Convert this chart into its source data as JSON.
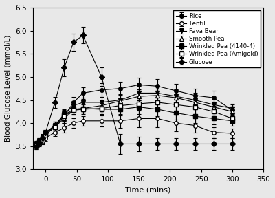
{
  "time_points": [
    -15,
    -10,
    -5,
    0,
    15,
    30,
    45,
    60,
    90,
    120,
    150,
    180,
    210,
    240,
    270,
    300
  ],
  "rice": {
    "y": [
      3.55,
      3.62,
      3.7,
      3.8,
      3.95,
      4.15,
      4.45,
      4.65,
      4.72,
      4.75,
      4.83,
      4.8,
      4.7,
      4.6,
      4.55,
      4.28
    ],
    "yerr": [
      0.06,
      0.06,
      0.06,
      0.06,
      0.08,
      0.1,
      0.12,
      0.13,
      0.15,
      0.15,
      0.15,
      0.15,
      0.15,
      0.15,
      0.15,
      0.12
    ],
    "marker": "o",
    "fillstyle": "full",
    "label": "Rice"
  },
  "lentil": {
    "y": [
      3.5,
      3.55,
      3.6,
      3.68,
      3.8,
      3.9,
      4.0,
      4.05,
      4.05,
      4.05,
      4.1,
      4.1,
      4.0,
      3.95,
      3.8,
      3.78
    ],
    "yerr": [
      0.06,
      0.06,
      0.06,
      0.06,
      0.08,
      0.1,
      0.1,
      0.1,
      0.12,
      0.15,
      0.18,
      0.18,
      0.18,
      0.15,
      0.12,
      0.1
    ],
    "marker": "o",
    "fillstyle": "none",
    "label": "Lentil"
  },
  "fava_bean": {
    "y": [
      3.55,
      3.62,
      3.68,
      3.78,
      3.95,
      4.2,
      4.38,
      4.45,
      4.45,
      4.5,
      4.65,
      4.65,
      4.58,
      4.5,
      4.4,
      4.32
    ],
    "yerr": [
      0.06,
      0.06,
      0.06,
      0.06,
      0.08,
      0.1,
      0.1,
      0.1,
      0.12,
      0.13,
      0.15,
      0.15,
      0.15,
      0.15,
      0.12,
      0.1
    ],
    "marker": "v",
    "fillstyle": "full",
    "label": "Fava Bean"
  },
  "smooth_pea": {
    "y": [
      3.52,
      3.58,
      3.65,
      3.75,
      3.92,
      4.1,
      4.28,
      4.32,
      4.38,
      4.48,
      4.58,
      4.6,
      4.55,
      4.45,
      4.35,
      4.25
    ],
    "yerr": [
      0.06,
      0.06,
      0.06,
      0.06,
      0.08,
      0.1,
      0.1,
      0.1,
      0.12,
      0.13,
      0.15,
      0.15,
      0.15,
      0.15,
      0.12,
      0.1
    ],
    "marker": "^",
    "fillstyle": "none",
    "label": "Smooth Pea"
  },
  "wrinkled_4140": {
    "y": [
      3.53,
      3.6,
      3.67,
      3.77,
      3.95,
      4.18,
      4.3,
      4.32,
      4.3,
      4.3,
      4.35,
      4.3,
      4.22,
      4.15,
      4.1,
      4.05
    ],
    "yerr": [
      0.06,
      0.06,
      0.06,
      0.06,
      0.08,
      0.1,
      0.1,
      0.1,
      0.12,
      0.13,
      0.15,
      0.15,
      0.15,
      0.15,
      0.12,
      0.1
    ],
    "marker": "s",
    "fillstyle": "full",
    "label": "Wrinkled Pea (4140-4)"
  },
  "wrinkled_amigold": {
    "y": [
      3.52,
      3.58,
      3.65,
      3.75,
      3.92,
      4.15,
      4.28,
      4.3,
      4.32,
      4.38,
      4.42,
      4.45,
      4.4,
      4.35,
      4.25,
      4.1
    ],
    "yerr": [
      0.06,
      0.06,
      0.06,
      0.06,
      0.08,
      0.1,
      0.1,
      0.1,
      0.12,
      0.13,
      0.15,
      0.15,
      0.15,
      0.15,
      0.12,
      0.1
    ],
    "marker": "s",
    "fillstyle": "none",
    "label": "Wrinkled Pea (Amigold)"
  },
  "glucose": {
    "y": [
      3.5,
      3.58,
      3.68,
      3.8,
      4.45,
      5.2,
      5.75,
      5.9,
      5.0,
      3.55,
      3.55,
      3.55,
      3.55,
      3.55,
      3.55,
      3.55
    ],
    "yerr": [
      0.06,
      0.06,
      0.06,
      0.06,
      0.12,
      0.18,
      0.18,
      0.18,
      0.2,
      0.22,
      0.15,
      0.12,
      0.12,
      0.12,
      0.12,
      0.12
    ],
    "marker": "D",
    "fillstyle": "full",
    "label": "Glucose"
  },
  "xlabel": "Time (mins)",
  "ylabel": "Blood Glucose Level (mmol/L)",
  "xlim": [
    -20,
    350
  ],
  "ylim": [
    3.0,
    6.5
  ],
  "xticks": [
    0,
    50,
    100,
    150,
    200,
    250,
    300,
    350
  ],
  "yticks": [
    3.0,
    3.5,
    4.0,
    4.5,
    5.0,
    5.5,
    6.0,
    6.5
  ],
  "bg_color": "#e8e8e8",
  "series_order": [
    "rice",
    "lentil",
    "fava_bean",
    "smooth_pea",
    "wrinkled_4140",
    "wrinkled_amigold",
    "glucose"
  ]
}
